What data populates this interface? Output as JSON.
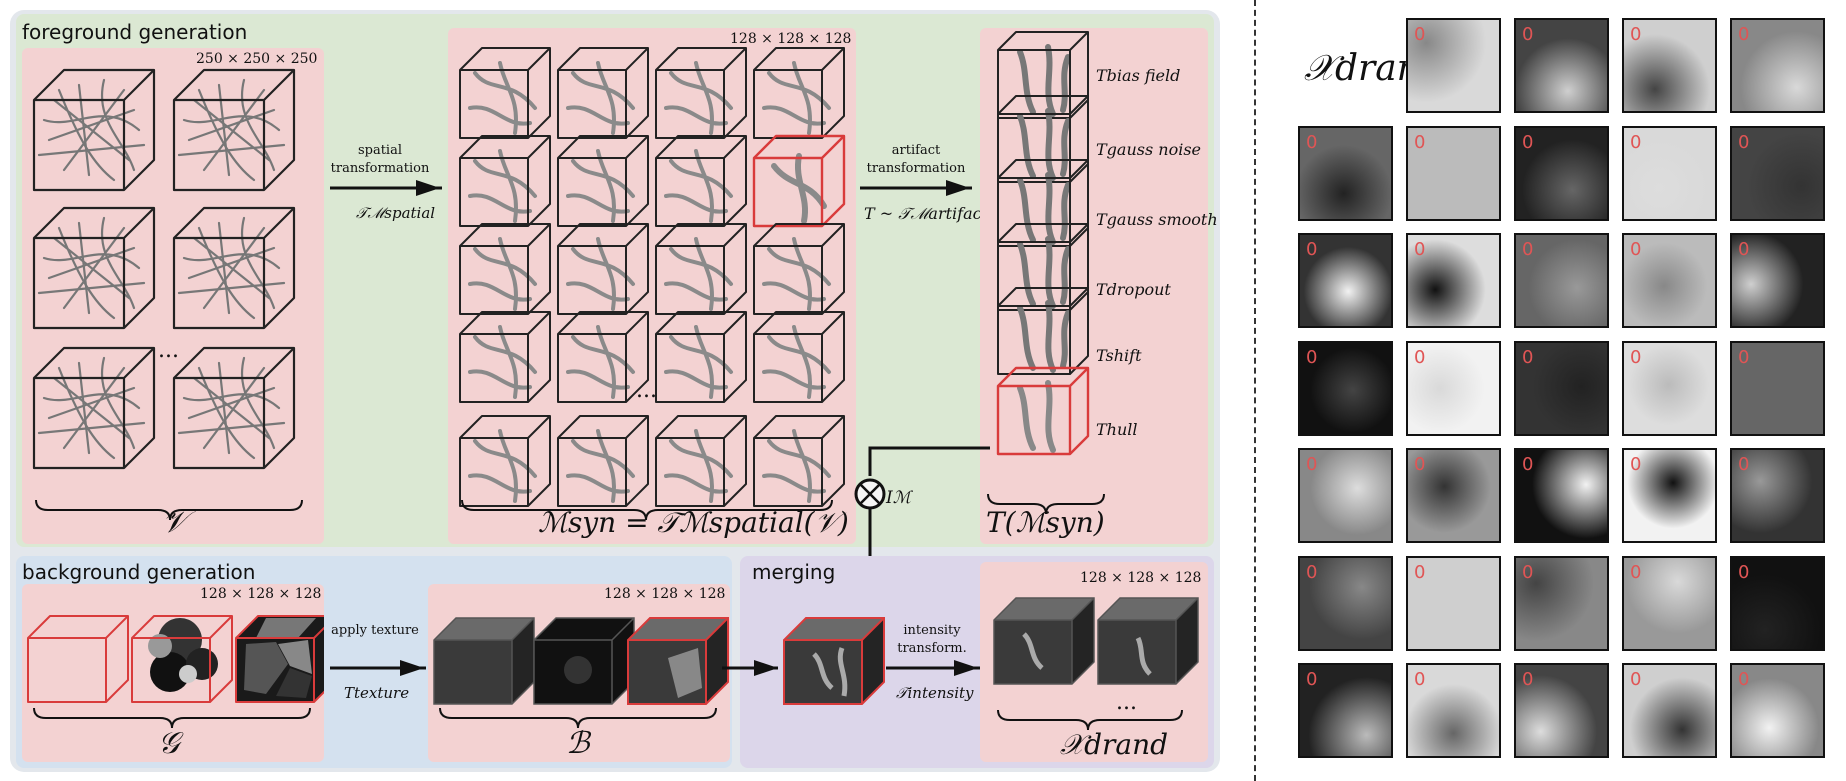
{
  "foreground": {
    "title": "foreground generation",
    "v_dim": "250 × 250 × 250",
    "v_ellipsis": "...",
    "v_label": "𝒱",
    "m_dim": "128 × 128 × 128",
    "m_ellipsis": "...",
    "m_label": "ℳsyn = 𝒯ℳspatial(𝒱)",
    "spatial_label": "spatial transformation",
    "spatial_math": "𝒯ℳspatial",
    "artifact_label": "artifact transformation",
    "artifact_math": "T ~ 𝒯ℳartifact",
    "t_labels": [
      "Tbias field",
      "Tgauss noise",
      "Tgauss smooth",
      "Tdropout",
      "Tshift",
      "Thull"
    ],
    "t_result": "T(ℳsyn)",
    "mask_label": "Iℳ"
  },
  "background": {
    "title": "background generation",
    "g_dim": "128 × 128 × 128",
    "g_label": "𝒢",
    "texture_label": "apply texture",
    "texture_math": "Ttexture",
    "b_dim": "128 × 128 × 128",
    "b_label": "ℬ"
  },
  "merging": {
    "title": "merging",
    "intensity_label": "intensity transform.",
    "intensity_math": "𝒯intensity",
    "x_dim": "128 × 128 × 128",
    "x_ellipsis": "...",
    "x_label": "𝒳drand"
  },
  "grid": {
    "label": "𝒳drand",
    "tile_mark": "0",
    "rows": 7,
    "cols": 5
  },
  "colors": {
    "foreground_bg": "#dbe8d3",
    "background_bg": "#d4e1ef",
    "merging_bg": "#dcd6ea",
    "panel_pink": "#f3d2d2",
    "highlight_red": "#d93b3b"
  }
}
